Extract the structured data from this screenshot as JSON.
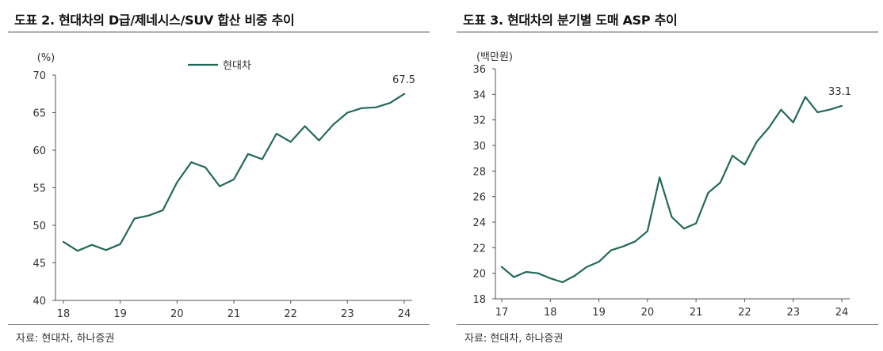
{
  "charts": [
    {
      "title": "도표 2. 현대차의 D급/제네시스/SUV 합산 비중 추이",
      "source": "자료: 현대차, 하나증권",
      "unit": "(%)",
      "legend": "현대차",
      "end_label": "67.5",
      "line_color": "#23695a"
    },
    {
      "title": "도표 3. 현대차의 분기별 도매 ASP 추이",
      "source": "자료: 현대차, 하나증권",
      "unit": "(백만원)",
      "end_label": "33.1",
      "line_color": "#23695a"
    }
  ],
  "chart_data": [
    {
      "type": "line",
      "x_tick_labels": [
        "18",
        "19",
        "20",
        "21",
        "22",
        "23",
        "24"
      ],
      "ylim": [
        40,
        70
      ],
      "y_ticks": [
        40,
        45,
        50,
        55,
        60,
        65,
        70
      ],
      "legend_placement": "top-center",
      "grid": false,
      "series": [
        {
          "name": "현대차",
          "x": [
            2018.0,
            2018.25,
            2018.5,
            2018.75,
            2019.0,
            2019.25,
            2019.5,
            2019.75,
            2020.0,
            2020.25,
            2020.5,
            2020.75,
            2021.0,
            2021.25,
            2021.5,
            2021.75,
            2022.0,
            2022.25,
            2022.5,
            2022.75,
            2023.0,
            2023.25,
            2023.5,
            2023.75,
            2024.0
          ],
          "values": [
            47.8,
            46.6,
            47.4,
            46.7,
            47.5,
            50.9,
            51.3,
            52.0,
            55.7,
            58.4,
            57.7,
            55.2,
            56.1,
            59.5,
            58.8,
            62.2,
            61.1,
            63.2,
            61.3,
            63.4,
            65.0,
            65.6,
            65.7,
            66.3,
            67.5
          ]
        }
      ]
    },
    {
      "type": "line",
      "x_tick_labels": [
        "17",
        "18",
        "19",
        "20",
        "21",
        "22",
        "23",
        "24"
      ],
      "ylim": [
        18,
        36
      ],
      "y_ticks": [
        18,
        20,
        22,
        24,
        26,
        28,
        30,
        32,
        34,
        36
      ],
      "grid": false,
      "series": [
        {
          "x": [
            2017.0,
            2017.25,
            2017.5,
            2017.75,
            2018.0,
            2018.25,
            2018.5,
            2018.75,
            2019.0,
            2019.25,
            2019.5,
            2019.75,
            2020.0,
            2020.25,
            2020.5,
            2020.75,
            2021.0,
            2021.25,
            2021.5,
            2021.75,
            2022.0,
            2022.25,
            2022.5,
            2022.75,
            2023.0,
            2023.25,
            2023.5,
            2023.75,
            2024.0
          ],
          "values": [
            20.5,
            19.7,
            20.1,
            20.0,
            19.6,
            19.3,
            19.8,
            20.5,
            20.9,
            21.8,
            22.1,
            22.5,
            23.3,
            27.5,
            24.4,
            23.5,
            23.9,
            26.3,
            27.1,
            29.2,
            28.5,
            30.3,
            31.4,
            32.8,
            31.8,
            33.8,
            32.6,
            32.8,
            33.1
          ]
        }
      ]
    }
  ]
}
